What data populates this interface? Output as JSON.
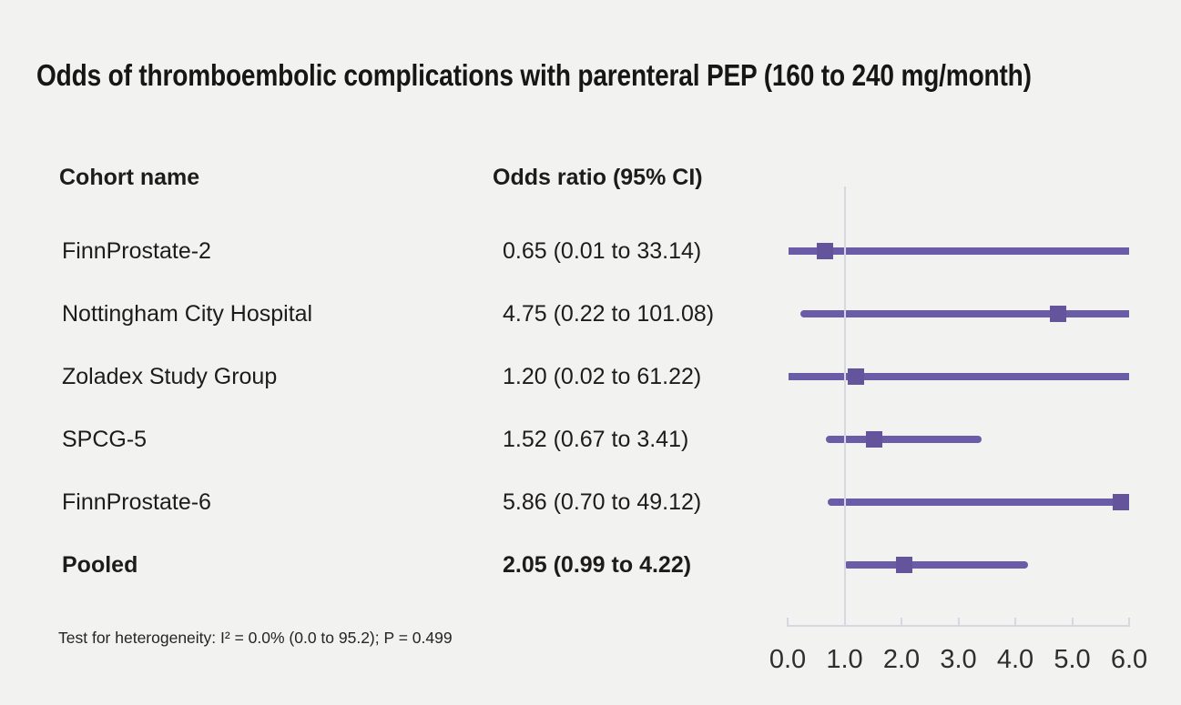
{
  "title": "Odds of thromboembolic complications with parenteral PEP (160 to 240 mg/month)",
  "table": {
    "col1_header": "Cohort name",
    "col2_header": "Odds ratio (95% CI)"
  },
  "footnote": "Test for heterogeneity: I² = 0.0% (0.0 to 95.2); P = 0.499",
  "colors": {
    "background": "#f2f2f1",
    "marker_purple": "#63549b",
    "line_purple": "#6a5ca6",
    "axis_gray": "#d5d8e0",
    "text": "#1d1c1b"
  },
  "chart_data": {
    "type": "forest",
    "title": "Odds of thromboembolic complications with parenteral PEP (160 to 240 mg/month)",
    "columns": [
      "Cohort name",
      "Odds ratio (95% CI)"
    ],
    "rows": [
      {
        "cohort": "FinnProstate-2",
        "label": "0.65 (0.01 to 33.14)",
        "or": 0.65,
        "ci_low": 0.01,
        "ci_high": 33.14,
        "pooled": false
      },
      {
        "cohort": "Nottingham City Hospital",
        "label": "4.75 (0.22 to 101.08)",
        "or": 4.75,
        "ci_low": 0.22,
        "ci_high": 101.08,
        "pooled": false
      },
      {
        "cohort": "Zoladex Study Group",
        "label": "1.20 (0.02 to 61.22)",
        "or": 1.2,
        "ci_low": 0.02,
        "ci_high": 61.22,
        "pooled": false
      },
      {
        "cohort": "SPCG-5",
        "label": "1.52 (0.67 to 3.41)",
        "or": 1.52,
        "ci_low": 0.67,
        "ci_high": 3.41,
        "pooled": false
      },
      {
        "cohort": "FinnProstate-6",
        "label": "5.86 (0.70 to 49.12)",
        "or": 5.86,
        "ci_low": 0.7,
        "ci_high": 49.12,
        "pooled": false
      },
      {
        "cohort": "Pooled",
        "label": "2.05 (0.99 to 4.22)",
        "or": 2.05,
        "ci_low": 0.99,
        "ci_high": 4.22,
        "pooled": true
      }
    ],
    "xaxis": {
      "tick_values": [
        0,
        1,
        2,
        3,
        4,
        5,
        6
      ],
      "tick_labels": [
        "0.0",
        "1.0",
        "2.0",
        "3.0",
        "4.0",
        "5.0",
        "6.0"
      ],
      "xlim": [
        0,
        6
      ],
      "ref_line": 1.0,
      "grid": false
    },
    "heterogeneity": "Test for heterogeneity: I² = 0.0% (0.0 to 95.2); P = 0.499"
  }
}
